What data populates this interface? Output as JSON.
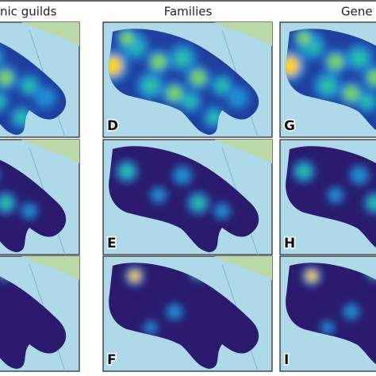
{
  "headers": [
    "nic guilds",
    "Families",
    "Gene"
  ],
  "panel_labels": [
    [
      "D",
      "G"
    ],
    [
      "E",
      "H"
    ],
    [
      "F",
      "I"
    ]
  ]
}
